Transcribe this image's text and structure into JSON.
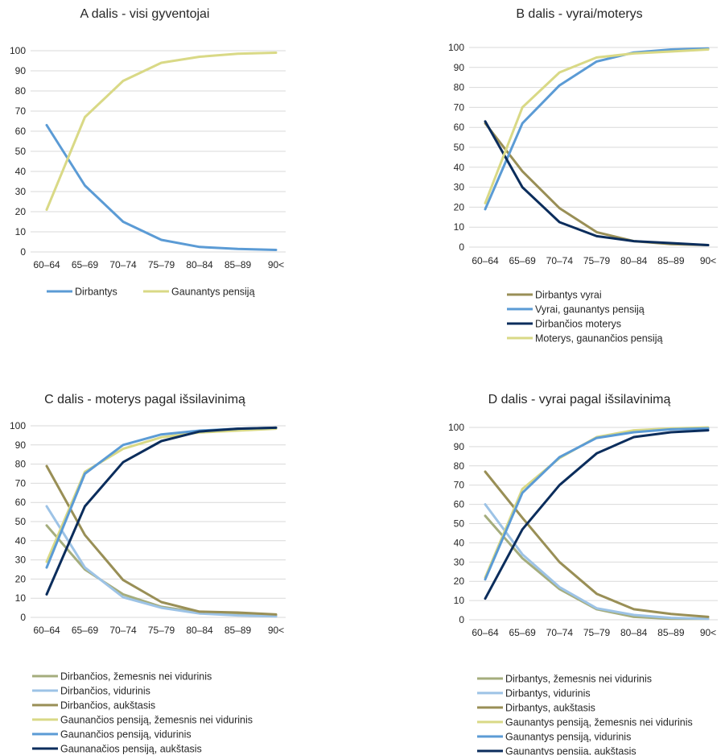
{
  "colors": {
    "light_blue": "#9dc3e6",
    "mid_blue": "#5b9bd5",
    "dark_navy": "#0b2d5c",
    "olive": "#998f56",
    "khaki": "#a5ad7d",
    "yellow": "#d9d986",
    "grid": "#d9d9d9"
  },
  "chart_data": [
    {
      "type": "line",
      "title": "A dalis - visi gyventojai",
      "categories": [
        "60–64",
        "65–69",
        "70–74",
        "75–79",
        "80–84",
        "85–89",
        "90<"
      ],
      "ylim": [
        0,
        100
      ],
      "yticks": [
        0,
        10,
        20,
        30,
        40,
        50,
        60,
        70,
        80,
        90,
        100
      ],
      "grid": true,
      "legend_position": "bottom",
      "series": [
        {
          "name": "Dirbantys",
          "color": "#5b9bd5",
          "values": [
            63,
            33,
            15,
            6,
            2.5,
            1.5,
            1
          ]
        },
        {
          "name": "Gaunantys pensiją",
          "color": "#d9d986",
          "values": [
            21,
            67,
            85,
            94,
            97,
            98.5,
            99
          ]
        }
      ]
    },
    {
      "type": "line",
      "title": "B dalis - vyrai/moterys",
      "categories": [
        "60–64",
        "65–69",
        "70–74",
        "75–79",
        "80–84",
        "85–89",
        "90<"
      ],
      "ylim": [
        0,
        100
      ],
      "yticks": [
        0,
        10,
        20,
        30,
        40,
        50,
        60,
        70,
        80,
        90,
        100
      ],
      "grid": true,
      "legend_position": "bottom",
      "series": [
        {
          "name": "Dirbantys vyrai",
          "color": "#998f56",
          "values": [
            62,
            38,
            19.5,
            7.5,
            3,
            1.5,
            1
          ]
        },
        {
          "name": "Vyrai, gaunantys pensiją",
          "color": "#5b9bd5",
          "values": [
            19,
            62,
            81,
            93,
            97.5,
            99,
            99.5
          ]
        },
        {
          "name": "Dirbančios moterys",
          "color": "#0b2d5c",
          "values": [
            63,
            30,
            12.5,
            5.5,
            3,
            2,
            1
          ]
        },
        {
          "name": "Moterys, gaunančios pensiją",
          "color": "#d9d986",
          "values": [
            22,
            70,
            87.5,
            95,
            97,
            98,
            99
          ]
        }
      ]
    },
    {
      "type": "line",
      "title": "C dalis - moterys pagal išsilavinimą",
      "categories": [
        "60–64",
        "65–69",
        "70–74",
        "75–79",
        "80–84",
        "85–89",
        "90<"
      ],
      "ylim": [
        0,
        100
      ],
      "yticks": [
        0,
        10,
        20,
        30,
        40,
        50,
        60,
        70,
        80,
        90,
        100
      ],
      "grid": true,
      "legend_position": "bottom",
      "series": [
        {
          "name": "Dirbančios, žemesnis nei vidurinis",
          "color": "#a5ad7d",
          "values": [
            48,
            25,
            12,
            5.5,
            2.5,
            1.5,
            1
          ]
        },
        {
          "name": "Dirbančios, vidurinis",
          "color": "#9dc3e6",
          "values": [
            58,
            26,
            10.5,
            5,
            2,
            1,
            0.5
          ]
        },
        {
          "name": "Dirbančios, aukštasis",
          "color": "#998f56",
          "values": [
            79,
            43,
            19.5,
            8,
            3,
            2.5,
            1.5
          ]
        },
        {
          "name": "Gaunančios pensiją, žemesnis nei vidurinis",
          "color": "#d9d986",
          "values": [
            29,
            76,
            88,
            94,
            96.5,
            97.5,
            98.5
          ]
        },
        {
          "name": "Gaunančios pensiją, vidurinis",
          "color": "#5b9bd5",
          "values": [
            26,
            75,
            90,
            95.5,
            97.5,
            98.5,
            99
          ]
        },
        {
          "name": "Gaunanačios pensiją, aukštasis",
          "color": "#0b2d5c",
          "values": [
            12,
            58,
            81,
            92,
            97,
            98.5,
            99
          ]
        }
      ]
    },
    {
      "type": "line",
      "title": "D dalis - vyrai pagal išsilavinimą",
      "categories": [
        "60–64",
        "65–69",
        "70–74",
        "75–79",
        "80–84",
        "85–89",
        "90<"
      ],
      "ylim": [
        0,
        100
      ],
      "yticks": [
        0,
        10,
        20,
        30,
        40,
        50,
        60,
        70,
        80,
        90,
        100
      ],
      "grid": true,
      "legend_position": "bottom",
      "series": [
        {
          "name": "Dirbantys, žemesnis nei vidurinis",
          "color": "#a5ad7d",
          "values": [
            54,
            32,
            16,
            5.5,
            1.5,
            0.5,
            0.5
          ]
        },
        {
          "name": "Dirbantys, vidurinis",
          "color": "#9dc3e6",
          "values": [
            60,
            34,
            17,
            6,
            2.5,
            1,
            0.5
          ]
        },
        {
          "name": "Dirbantys, aukštasis",
          "color": "#998f56",
          "values": [
            77,
            53,
            30,
            13.5,
            5.5,
            3,
            1.5
          ]
        },
        {
          "name": "Gaunantys pensiją, žemesnis nei vidurinis",
          "color": "#d9d986",
          "values": [
            22,
            68,
            84,
            95,
            98.5,
            99.5,
            100
          ]
        },
        {
          "name": "Gaunantys pensiją, vidurinis",
          "color": "#5b9bd5",
          "values": [
            21,
            66,
            84.5,
            94.5,
            97.5,
            99,
            99.5
          ]
        },
        {
          "name": "Gaunantys pensiją, aukštasis",
          "color": "#0b2d5c",
          "values": [
            11,
            47,
            70,
            86.5,
            95,
            97.5,
            98.5
          ]
        }
      ]
    }
  ]
}
